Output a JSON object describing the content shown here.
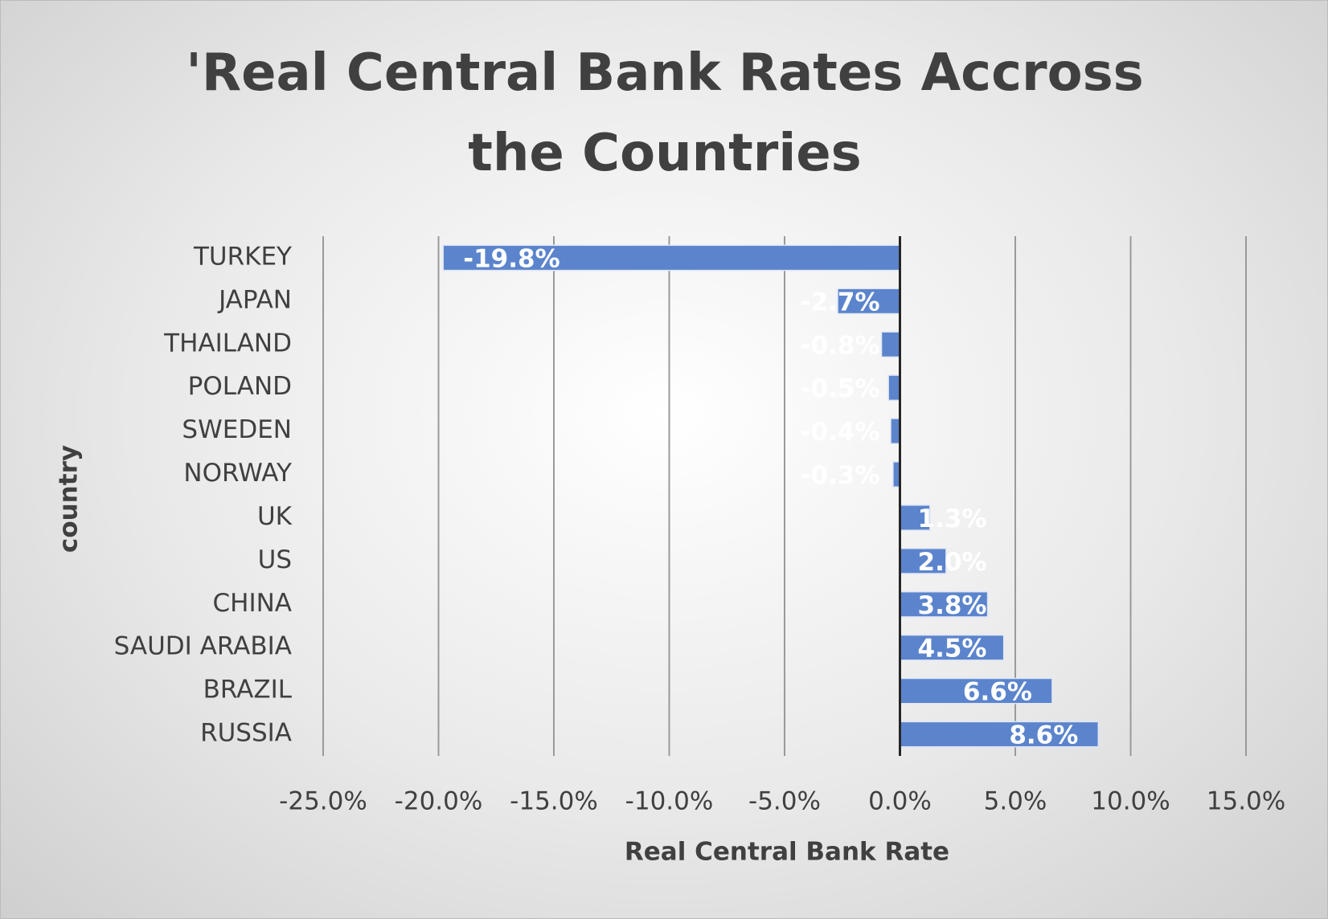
{
  "chart_data": {
    "type": "bar",
    "orientation": "horizontal",
    "title": "'Real Central Bank Rates Accross the Countries",
    "x_label": "Real Central Bank Rate",
    "y_label": "country",
    "categories": [
      "TURKEY",
      "JAPAN",
      "THAILAND",
      "POLAND",
      "SWEDEN",
      "NORWAY",
      "UK",
      "US",
      "CHINA",
      "SAUDI ARABIA",
      "BRAZIL",
      "RUSSIA"
    ],
    "values": [
      -19.8,
      -2.7,
      -0.8,
      -0.5,
      -0.4,
      -0.3,
      1.3,
      2.0,
      3.8,
      4.5,
      6.6,
      8.6
    ],
    "value_labels": [
      "-19.8%",
      "-2.7%",
      "-0.8%",
      "-0.5%",
      "-0.4%",
      "-0.3%",
      "1.3%",
      "2.0%",
      "3.8%",
      "4.5%",
      "6.6%",
      "8.6%"
    ],
    "color": "#5b84cc",
    "xlim": [
      -25,
      15
    ],
    "xticks": [
      {
        "value": -25,
        "label": "-25.0%"
      },
      {
        "value": -20,
        "label": "-20.0%"
      },
      {
        "value": -15,
        "label": "-15.0%"
      },
      {
        "value": -10,
        "label": "-10.0%"
      },
      {
        "value": -5,
        "label": "-5.0%"
      },
      {
        "value": 0,
        "label": "0.0%"
      },
      {
        "value": 5,
        "label": "5.0%"
      },
      {
        "value": 10,
        "label": "10.0%"
      },
      {
        "value": 15,
        "label": "15.0%"
      }
    ],
    "grid": true
  }
}
